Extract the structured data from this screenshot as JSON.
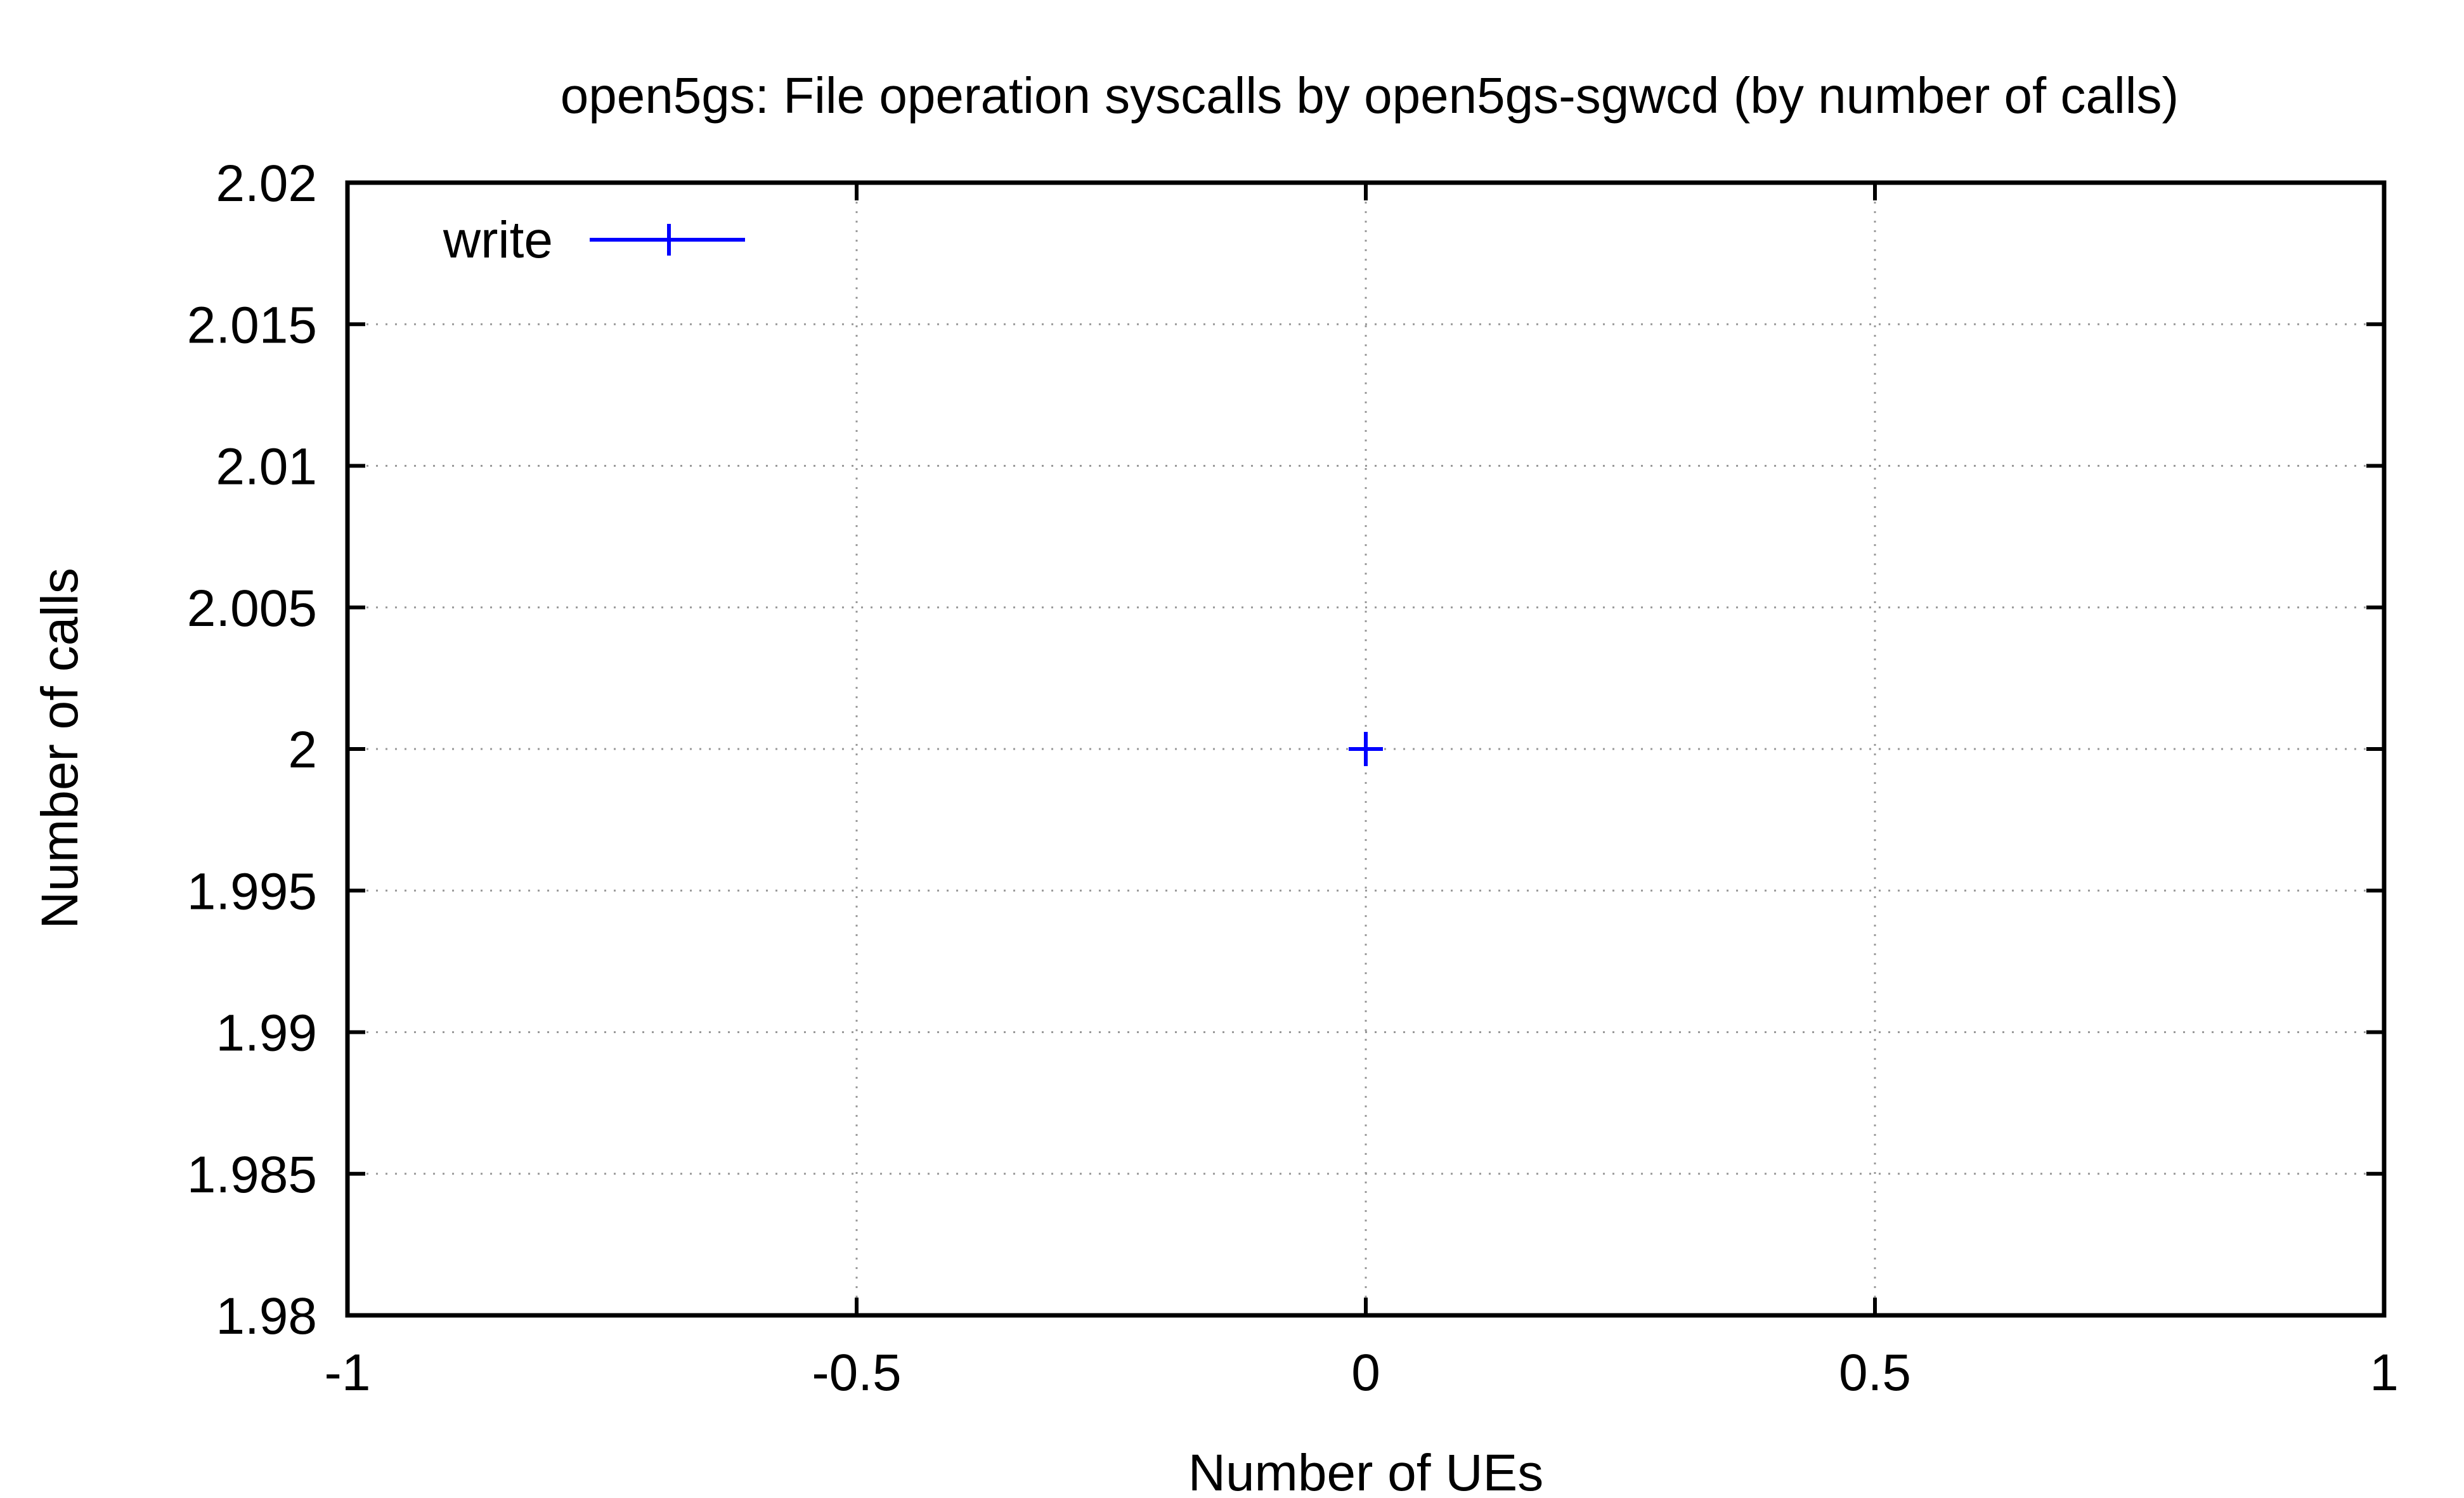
{
  "chart_data": {
    "type": "scatter",
    "title": "open5gs: File operation syscalls by open5gs-sgwcd (by number of calls)",
    "xlabel": "Number of UEs",
    "ylabel": "Number of calls",
    "xlim": [
      -1,
      1
    ],
    "ylim": [
      1.98,
      2.02
    ],
    "x_ticks": [
      -1,
      -0.5,
      0,
      0.5,
      1
    ],
    "x_tick_labels": [
      "-1",
      "-0.5",
      "0",
      "0.5",
      "1"
    ],
    "y_ticks": [
      1.98,
      1.985,
      1.99,
      1.995,
      2,
      2.005,
      2.01,
      2.015,
      2.02
    ],
    "y_tick_labels": [
      "1.98",
      "1.985",
      "1.99",
      "1.995",
      "2",
      "2.005",
      "2.01",
      "2.015",
      "2.02"
    ],
    "grid": true,
    "legend_position": "top-left",
    "series": [
      {
        "name": "write",
        "color": "#0000ff",
        "marker": "plus",
        "points": [
          {
            "x": 0,
            "y": 2
          }
        ]
      }
    ]
  }
}
